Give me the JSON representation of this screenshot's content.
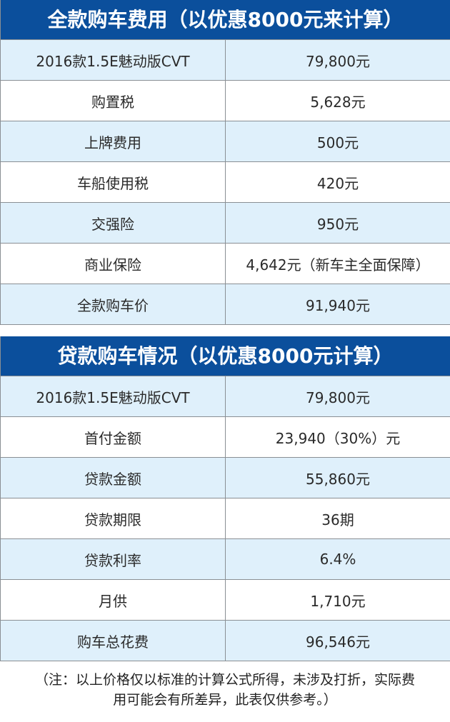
{
  "colors": {
    "header_bg": "#0b4f9c",
    "row_blue": "#dff0fb",
    "row_white": "#ffffff",
    "border": "#8a8f94"
  },
  "table1": {
    "title": "全款购车费用（以优惠8000元来计算）",
    "rows": [
      {
        "label": "2016款1.5E魅动版CVT",
        "value": "79,800元"
      },
      {
        "label": "购置税",
        "value": "5,628元"
      },
      {
        "label": "上牌费用",
        "value": "500元"
      },
      {
        "label": "车船使用税",
        "value": "420元"
      },
      {
        "label": "交强险",
        "value": "950元"
      },
      {
        "label": "商业保险",
        "value": "4,642元（新车主全面保障）"
      },
      {
        "label": "全款购车价",
        "value": "91,940元"
      }
    ]
  },
  "table2": {
    "title": "贷款购车情况（以优惠8000元计算）",
    "rows": [
      {
        "label": "2016款1.5E魅动版CVT",
        "value": "79,800元"
      },
      {
        "label": "首付金额",
        "value": "23,940（30%）元"
      },
      {
        "label": "贷款金额",
        "value": "55,860元"
      },
      {
        "label": "贷款期限",
        "value": "36期"
      },
      {
        "label": "贷款利率",
        "value": "6.4%"
      },
      {
        "label": "月供",
        "value": "1,710元"
      },
      {
        "label": "购车总花费",
        "value": "96,546元"
      }
    ]
  },
  "note": {
    "line1": "（注：以上价格仅以标准的计算公式所得，未涉及打折，实际费",
    "line2": "用可能会有所差异，此表仅供参考。）"
  }
}
